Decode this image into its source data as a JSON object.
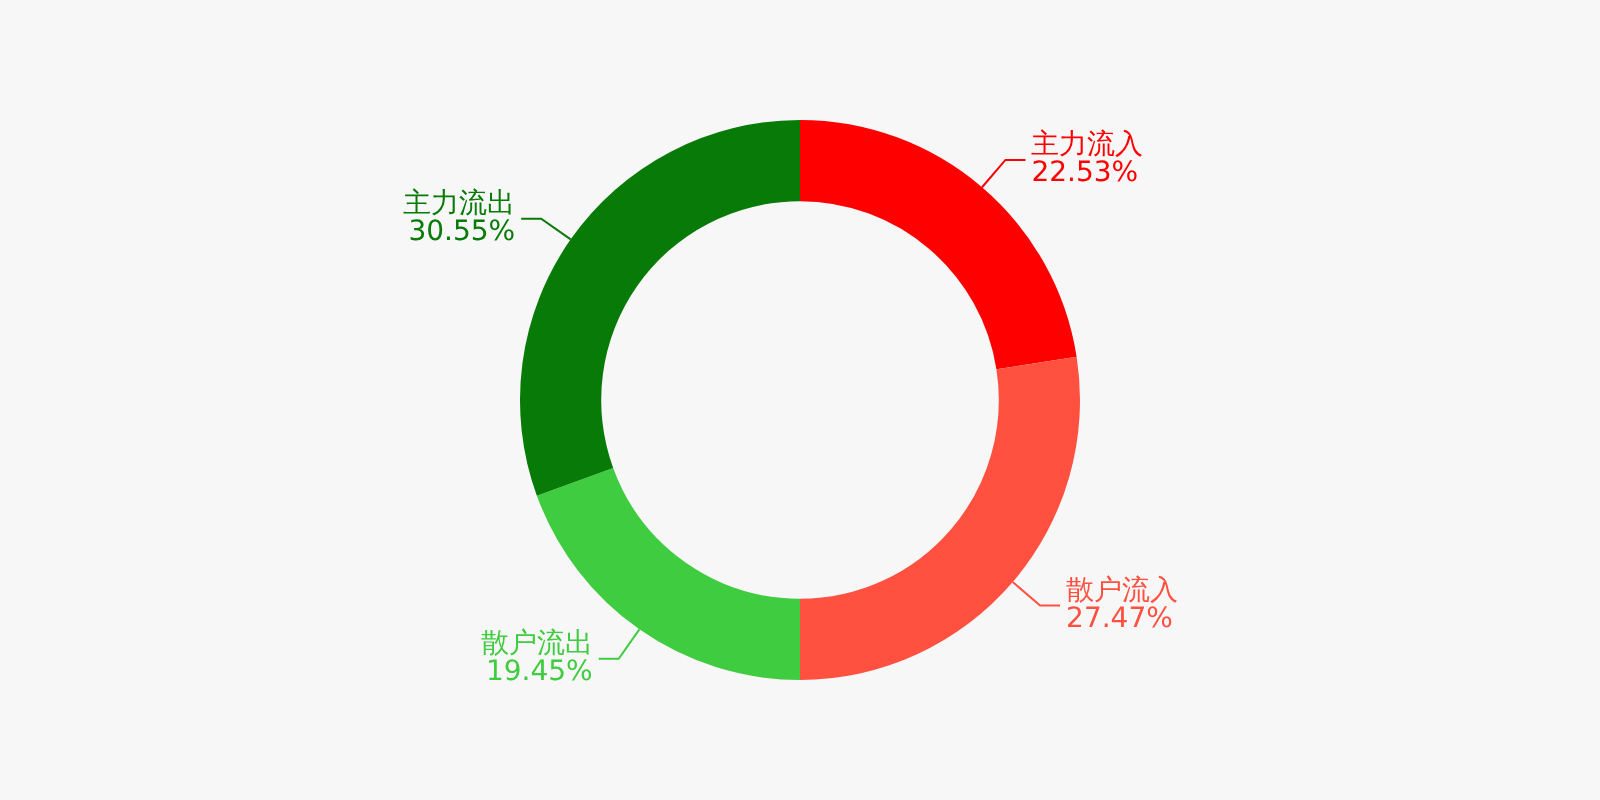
{
  "chart_data": {
    "type": "donut",
    "categories": [
      "主力流入",
      "散户流入",
      "散户流出",
      "主力流出"
    ],
    "values": [
      22.53,
      27.47,
      19.45,
      30.55
    ],
    "value_labels": [
      "22.53%",
      "27.47%",
      "19.45%",
      "30.55%"
    ],
    "colors": [
      "#ff0000",
      "#ff5040",
      "#40cc40",
      "#077a07"
    ],
    "legend": false
  }
}
